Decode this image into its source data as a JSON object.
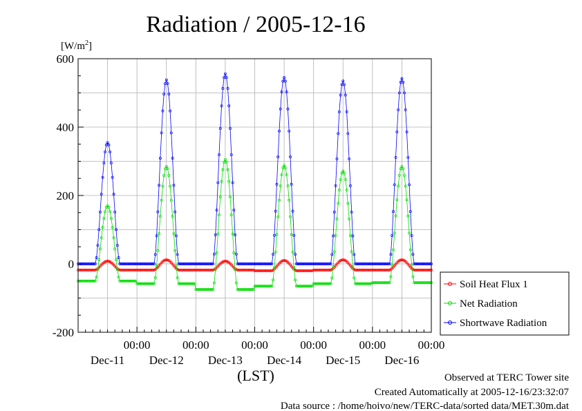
{
  "chart_data": {
    "type": "line",
    "title": "Radiation / 2005-12-16",
    "ylabel": "[W/m2]",
    "ylabel_base": "[W/m",
    "ylabel_sup": "2",
    "ylabel_close": "]",
    "xlabel": "(LST)",
    "ylim": [
      -200,
      600
    ],
    "xlim_hours": [
      0,
      144
    ],
    "y_ticks": [
      "600",
      "400",
      "200",
      "0",
      "-200"
    ],
    "x_ticks": [
      {
        "time": "00:00",
        "date": "Dec-11"
      },
      {
        "time": "00:00",
        "date": "Dec-12"
      },
      {
        "time": "00:00",
        "date": "Dec-13"
      },
      {
        "time": "00:00",
        "date": "Dec-14"
      },
      {
        "time": "00:00",
        "date": "Dec-15"
      },
      {
        "time": "00:00",
        "date": "Dec-16"
      }
    ],
    "grid": true,
    "legend_position": "right",
    "series": [
      {
        "name": "Soil Heat Flux 1",
        "color": "#ff0000",
        "daily": [
          {
            "base": -18,
            "peak": 8
          },
          {
            "base": -18,
            "peak": 12
          },
          {
            "base": -18,
            "peak": 8
          },
          {
            "base": -20,
            "peak": 10
          },
          {
            "base": -18,
            "peak": 12
          },
          {
            "base": -18,
            "peak": 12
          }
        ]
      },
      {
        "name": "Net Radiation",
        "color": "#00dd00",
        "daily": [
          {
            "base": -50,
            "peak": 170
          },
          {
            "base": -58,
            "peak": 285
          },
          {
            "base": -75,
            "peak": 305
          },
          {
            "base": -65,
            "peak": 288
          },
          {
            "base": -58,
            "peak": 272
          },
          {
            "base": -55,
            "peak": 285
          }
        ]
      },
      {
        "name": "Shortwave Radiation",
        "color": "#0000ff",
        "daily": [
          {
            "base": 0,
            "peak": 355
          },
          {
            "base": 0,
            "peak": 538
          },
          {
            "base": 0,
            "peak": 556
          },
          {
            "base": 0,
            "peak": 545
          },
          {
            "base": 0,
            "peak": 535
          },
          {
            "base": 0,
            "peak": 542
          }
        ]
      }
    ]
  },
  "footer": {
    "line1": "Observed at TERC Tower site",
    "line2": "Created Automatically at 2005-12-16/23:32:07",
    "line3": "Data source : /home/hoivo/new/TERC-data/sorted  data/MET.30m.dat"
  }
}
